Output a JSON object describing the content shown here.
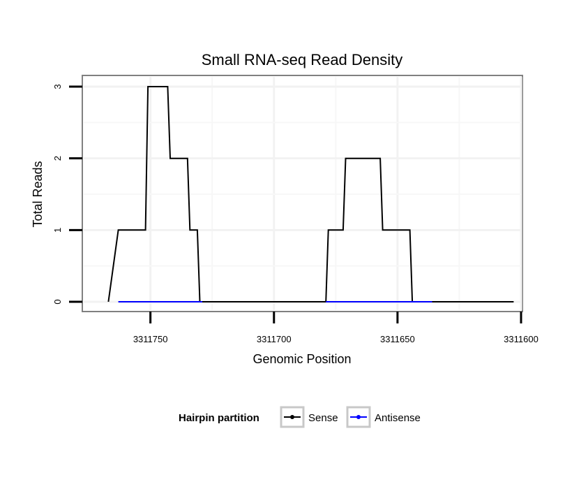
{
  "chart_data": {
    "type": "line",
    "title": "Small RNA-seq Read Density",
    "xlabel": "Genomic Position",
    "ylabel": "Total Reads",
    "x_reversed": true,
    "xlim": [
      3311777,
      3311600
    ],
    "ylim": [
      0,
      3
    ],
    "x_ticks": [
      3311750,
      3311700,
      3311650,
      3311600
    ],
    "x_tick_labels": [
      "3311750",
      "3311700",
      "3311650",
      "3311600"
    ],
    "y_ticks": [
      0,
      1,
      2,
      3
    ],
    "y_tick_labels": [
      "0",
      "1",
      "2",
      "3"
    ],
    "grid": true,
    "legend": {
      "title": "Hairpin partition",
      "position": "bottom",
      "entries": [
        "Sense",
        "Antisense"
      ]
    },
    "series": [
      {
        "name": "Sense",
        "color": "#000000",
        "x": [
          3311767,
          3311763,
          3311752,
          3311751,
          3311743,
          3311742,
          3311735,
          3311734,
          3311731,
          3311730,
          3311679,
          3311678,
          3311672,
          3311671,
          3311657,
          3311656,
          3311645,
          3311644,
          3311636,
          3311635,
          3311603
        ],
        "y": [
          0,
          1,
          1,
          3,
          3,
          2,
          2,
          1,
          1,
          0,
          0,
          1,
          1,
          2,
          2,
          1,
          1,
          0,
          0,
          0,
          0
        ]
      },
      {
        "name": "Antisense",
        "color": "#0000ff",
        "x": [
          3311763,
          3311729,
          3311679,
          3311636
        ],
        "y": [
          0,
          0,
          0,
          0
        ],
        "segments": [
          [
            0,
            1
          ],
          [
            2,
            3
          ]
        ]
      }
    ]
  }
}
